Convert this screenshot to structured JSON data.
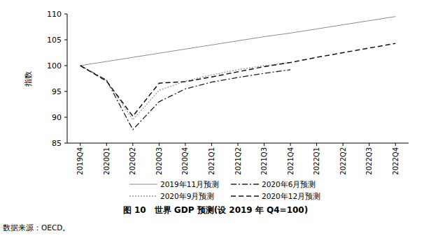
{
  "chart_data": {
    "type": "line",
    "title": "图 10　世界 GDP 预测(设 2019 年 Q4=100)",
    "source": "数据来源：OECD。",
    "y_label": "指数",
    "categories": [
      "2019Q4",
      "2020Q1",
      "2020Q2",
      "2020Q3",
      "2020Q4",
      "2021Q1",
      "2021Q2",
      "2021Q3",
      "2021Q4",
      "2022Q1",
      "2022Q2",
      "2022Q3",
      "2022Q4"
    ],
    "ylim": [
      85,
      110
    ],
    "yticks": [
      85,
      90,
      95,
      100,
      105,
      110
    ],
    "grid": false,
    "legend": "bottom",
    "series": [
      {
        "name": "2019年11月预测",
        "color": "#8c8c8c",
        "line_style": "solid",
        "values": [
          100,
          100.8,
          101.6,
          102.4,
          103.2,
          104.0,
          104.8,
          105.6,
          106.3,
          107.1,
          107.9,
          108.7,
          109.5
        ]
      },
      {
        "name": "2020年6月预测",
        "color": "#222222",
        "line_style": "dashdot",
        "values": [
          100,
          97.2,
          87.6,
          93.0,
          95.5,
          96.8,
          97.7,
          98.5,
          99.2,
          null,
          null,
          null,
          null
        ]
      },
      {
        "name": "2020年9月预测",
        "color": "#9a9a9a",
        "line_style": "dotted",
        "values": [
          100,
          97.1,
          89.5,
          95.2,
          97.0,
          98.2,
          99.2,
          100.0,
          100.6,
          null,
          null,
          null,
          null
        ]
      },
      {
        "name": "2020年12月预测",
        "color": "#111111",
        "line_style": "dashed",
        "values": [
          100,
          97.0,
          90.2,
          96.6,
          96.9,
          97.8,
          98.8,
          99.8,
          100.6,
          101.6,
          102.5,
          103.4,
          104.3
        ]
      }
    ]
  }
}
